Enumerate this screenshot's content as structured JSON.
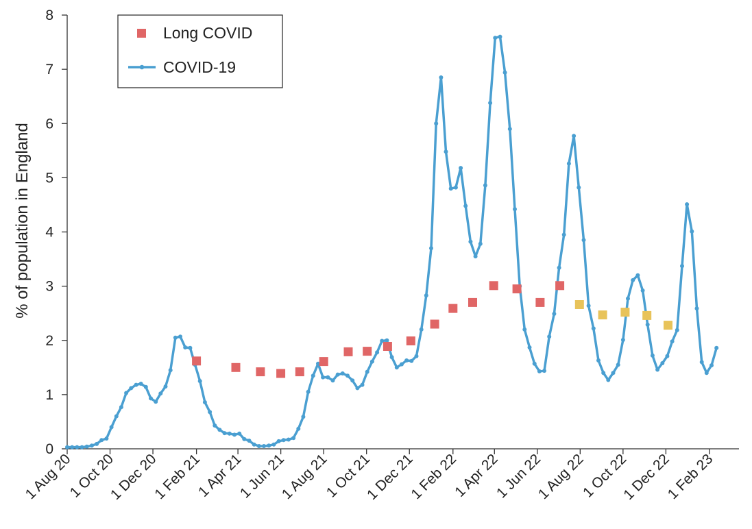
{
  "chart_data": {
    "type": "line",
    "title": "",
    "xlabel": "",
    "ylabel": "% of population in England",
    "xlim": [
      "2020-08-01",
      "2023-03-15"
    ],
    "ylim": [
      0,
      8
    ],
    "y_ticks": [
      0,
      1,
      2,
      3,
      4,
      5,
      6,
      7,
      8
    ],
    "x_ticks": [
      {
        "date": "2020-08-01",
        "label": "1 Aug 20"
      },
      {
        "date": "2020-10-01",
        "label": "1 Oct 20"
      },
      {
        "date": "2020-12-01",
        "label": "1 Dec 20"
      },
      {
        "date": "2021-02-01",
        "label": "1 Feb 21"
      },
      {
        "date": "2021-04-01",
        "label": "1 Apr 21"
      },
      {
        "date": "2021-06-01",
        "label": "1 Jun 21"
      },
      {
        "date": "2021-08-01",
        "label": "1 Aug 21"
      },
      {
        "date": "2021-10-01",
        "label": "1 Oct 21"
      },
      {
        "date": "2021-12-01",
        "label": "1 Dec 21"
      },
      {
        "date": "2022-02-01",
        "label": "1 Feb 22"
      },
      {
        "date": "2022-04-01",
        "label": "1 Apr 22"
      },
      {
        "date": "2022-06-01",
        "label": "1 Jun 22"
      },
      {
        "date": "2022-08-01",
        "label": "1 Aug 22"
      },
      {
        "date": "2022-10-01",
        "label": "1 Oct 22"
      },
      {
        "date": "2022-12-01",
        "label": "1 Dec 22"
      },
      {
        "date": "2023-02-01",
        "label": "1 Feb 23"
      }
    ],
    "grid": false,
    "legend_position": "top-left",
    "legend": [
      {
        "label": "Long COVID",
        "marker": "square",
        "color": "#e06666"
      },
      {
        "label": "COVID-19",
        "marker": "line-dot",
        "color": "#4a9fd1"
      }
    ],
    "series": [
      {
        "name": "COVID-19",
        "kind": "line",
        "color": "#4a9fd1",
        "points": [
          [
            "2020-08-01",
            0.03
          ],
          [
            "2020-08-08",
            0.03
          ],
          [
            "2020-08-15",
            0.03
          ],
          [
            "2020-08-22",
            0.03
          ],
          [
            "2020-08-29",
            0.04
          ],
          [
            "2020-09-05",
            0.06
          ],
          [
            "2020-09-12",
            0.09
          ],
          [
            "2020-09-19",
            0.16
          ],
          [
            "2020-09-26",
            0.19
          ],
          [
            "2020-10-03",
            0.4
          ],
          [
            "2020-10-10",
            0.6
          ],
          [
            "2020-10-17",
            0.77
          ],
          [
            "2020-10-24",
            1.03
          ],
          [
            "2020-10-31",
            1.12
          ],
          [
            "2020-11-07",
            1.18
          ],
          [
            "2020-11-14",
            1.2
          ],
          [
            "2020-11-21",
            1.14
          ],
          [
            "2020-11-28",
            0.93
          ],
          [
            "2020-12-05",
            0.87
          ],
          [
            "2020-12-12",
            1.02
          ],
          [
            "2020-12-19",
            1.15
          ],
          [
            "2020-12-26",
            1.45
          ],
          [
            "2021-01-02",
            2.05
          ],
          [
            "2021-01-09",
            2.07
          ],
          [
            "2021-01-16",
            1.87
          ],
          [
            "2021-01-23",
            1.86
          ],
          [
            "2021-01-30",
            1.55
          ],
          [
            "2021-02-06",
            1.25
          ],
          [
            "2021-02-13",
            0.86
          ],
          [
            "2021-02-20",
            0.68
          ],
          [
            "2021-02-27",
            0.43
          ],
          [
            "2021-03-06",
            0.35
          ],
          [
            "2021-03-13",
            0.29
          ],
          [
            "2021-03-20",
            0.28
          ],
          [
            "2021-03-27",
            0.26
          ],
          [
            "2021-04-03",
            0.28
          ],
          [
            "2021-04-10",
            0.18
          ],
          [
            "2021-04-17",
            0.15
          ],
          [
            "2021-04-24",
            0.08
          ],
          [
            "2021-05-01",
            0.05
          ],
          [
            "2021-05-08",
            0.05
          ],
          [
            "2021-05-15",
            0.06
          ],
          [
            "2021-05-22",
            0.08
          ],
          [
            "2021-05-29",
            0.14
          ],
          [
            "2021-06-05",
            0.16
          ],
          [
            "2021-06-12",
            0.17
          ],
          [
            "2021-06-19",
            0.2
          ],
          [
            "2021-06-26",
            0.37
          ],
          [
            "2021-07-03",
            0.59
          ],
          [
            "2021-07-10",
            1.05
          ],
          [
            "2021-07-17",
            1.35
          ],
          [
            "2021-07-24",
            1.57
          ],
          [
            "2021-07-31",
            1.32
          ],
          [
            "2021-08-07",
            1.32
          ],
          [
            "2021-08-14",
            1.26
          ],
          [
            "2021-08-21",
            1.37
          ],
          [
            "2021-08-28",
            1.39
          ],
          [
            "2021-09-04",
            1.35
          ],
          [
            "2021-09-11",
            1.26
          ],
          [
            "2021-09-18",
            1.12
          ],
          [
            "2021-09-25",
            1.18
          ],
          [
            "2021-10-02",
            1.42
          ],
          [
            "2021-10-09",
            1.61
          ],
          [
            "2021-10-16",
            1.78
          ],
          [
            "2021-10-23",
            1.99
          ],
          [
            "2021-10-30",
            2.0
          ],
          [
            "2021-11-06",
            1.69
          ],
          [
            "2021-11-13",
            1.5
          ],
          [
            "2021-11-20",
            1.56
          ],
          [
            "2021-11-27",
            1.63
          ],
          [
            "2021-12-04",
            1.62
          ],
          [
            "2021-12-11",
            1.71
          ],
          [
            "2021-12-18",
            2.2
          ],
          [
            "2021-12-25",
            2.83
          ],
          [
            "2022-01-01",
            3.7
          ],
          [
            "2022-01-08",
            6.0
          ],
          [
            "2022-01-15",
            6.85
          ],
          [
            "2022-01-22",
            5.48
          ],
          [
            "2022-01-29",
            4.8
          ],
          [
            "2022-02-05",
            4.82
          ],
          [
            "2022-02-12",
            5.18
          ],
          [
            "2022-02-19",
            4.48
          ],
          [
            "2022-02-26",
            3.82
          ],
          [
            "2022-03-05",
            3.55
          ],
          [
            "2022-03-12",
            3.78
          ],
          [
            "2022-03-19",
            4.86
          ],
          [
            "2022-03-26",
            6.38
          ],
          [
            "2022-04-02",
            7.58
          ],
          [
            "2022-04-09",
            7.6
          ],
          [
            "2022-04-16",
            6.94
          ],
          [
            "2022-04-23",
            5.9
          ],
          [
            "2022-04-30",
            4.42
          ],
          [
            "2022-05-07",
            3.0
          ],
          [
            "2022-05-14",
            2.2
          ],
          [
            "2022-05-21",
            1.87
          ],
          [
            "2022-05-28",
            1.57
          ],
          [
            "2022-06-04",
            1.43
          ],
          [
            "2022-06-11",
            1.44
          ],
          [
            "2022-06-18",
            2.07
          ],
          [
            "2022-06-25",
            2.49
          ],
          [
            "2022-07-02",
            3.34
          ],
          [
            "2022-07-09",
            3.95
          ],
          [
            "2022-07-16",
            5.26
          ],
          [
            "2022-07-23",
            5.77
          ],
          [
            "2022-07-30",
            4.82
          ],
          [
            "2022-08-06",
            3.85
          ],
          [
            "2022-08-13",
            2.64
          ],
          [
            "2022-08-20",
            2.22
          ],
          [
            "2022-08-27",
            1.63
          ],
          [
            "2022-09-03",
            1.4
          ],
          [
            "2022-09-10",
            1.27
          ],
          [
            "2022-09-17",
            1.4
          ],
          [
            "2022-09-24",
            1.55
          ],
          [
            "2022-10-01",
            2.01
          ],
          [
            "2022-10-08",
            2.77
          ],
          [
            "2022-10-15",
            3.11
          ],
          [
            "2022-10-22",
            3.2
          ],
          [
            "2022-10-29",
            2.92
          ],
          [
            "2022-11-05",
            2.29
          ],
          [
            "2022-11-12",
            1.72
          ],
          [
            "2022-11-19",
            1.46
          ],
          [
            "2022-11-26",
            1.58
          ],
          [
            "2022-12-03",
            1.71
          ],
          [
            "2022-12-10",
            1.98
          ],
          [
            "2022-12-17",
            2.19
          ],
          [
            "2022-12-24",
            3.37
          ],
          [
            "2022-12-31",
            4.51
          ],
          [
            "2023-01-07",
            4.01
          ],
          [
            "2023-01-14",
            2.59
          ],
          [
            "2023-01-21",
            1.6
          ],
          [
            "2023-01-28",
            1.4
          ],
          [
            "2023-02-04",
            1.54
          ],
          [
            "2023-02-11",
            1.86
          ]
        ]
      },
      {
        "name": "Long COVID",
        "kind": "markers",
        "points": [
          {
            "date": "2021-02-01",
            "value": 1.62,
            "color": "#e06666"
          },
          {
            "date": "2021-03-29",
            "value": 1.5,
            "color": "#e06666"
          },
          {
            "date": "2021-05-03",
            "value": 1.42,
            "color": "#e06666"
          },
          {
            "date": "2021-06-01",
            "value": 1.39,
            "color": "#e06666"
          },
          {
            "date": "2021-06-28",
            "value": 1.42,
            "color": "#e06666"
          },
          {
            "date": "2021-08-01",
            "value": 1.61,
            "color": "#e06666"
          },
          {
            "date": "2021-09-05",
            "value": 1.79,
            "color": "#e06666"
          },
          {
            "date": "2021-10-02",
            "value": 1.8,
            "color": "#e06666"
          },
          {
            "date": "2021-10-31",
            "value": 1.89,
            "color": "#e06666"
          },
          {
            "date": "2021-12-03",
            "value": 1.99,
            "color": "#e06666"
          },
          {
            "date": "2022-01-06",
            "value": 2.3,
            "color": "#e06666"
          },
          {
            "date": "2022-02-01",
            "value": 2.59,
            "color": "#e06666"
          },
          {
            "date": "2022-03-01",
            "value": 2.7,
            "color": "#e06666"
          },
          {
            "date": "2022-03-31",
            "value": 3.01,
            "color": "#e06666"
          },
          {
            "date": "2022-05-03",
            "value": 2.95,
            "color": "#e06666"
          },
          {
            "date": "2022-06-05",
            "value": 2.7,
            "color": "#e06666"
          },
          {
            "date": "2022-07-03",
            "value": 3.01,
            "color": "#e06666"
          },
          {
            "date": "2022-07-31",
            "value": 2.66,
            "color": "#e8c35a"
          },
          {
            "date": "2022-09-02",
            "value": 2.47,
            "color": "#e8c35a"
          },
          {
            "date": "2022-10-04",
            "value": 2.52,
            "color": "#e8c35a"
          },
          {
            "date": "2022-11-04",
            "value": 2.46,
            "color": "#e8c35a"
          },
          {
            "date": "2022-12-04",
            "value": 2.28,
            "color": "#e8c35a"
          }
        ]
      }
    ]
  }
}
